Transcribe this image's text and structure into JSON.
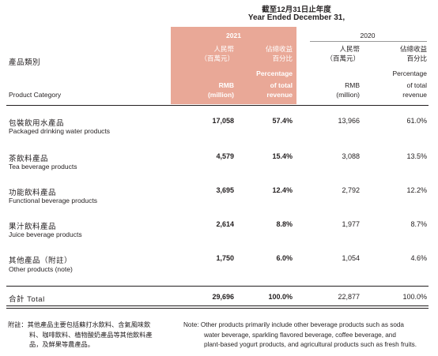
{
  "header": {
    "period_cn": "截至12月31日止年度",
    "period_en": "Year Ended December 31,",
    "category_cn": "產品類別",
    "category_en": "Product Category",
    "year_2021": "2021",
    "year_2020": "2020",
    "col_rmb_cn_1": "人民幣",
    "col_rmb_cn_2": "（百萬元）",
    "col_rmb_en_1": "RMB",
    "col_rmb_en_2": "(million)",
    "col_pct_cn_1": "佔總收益",
    "col_pct_cn_2": "百分比",
    "col_pct_en_1": "Percentage",
    "col_pct_en_2": "of total",
    "col_pct_en_3": "revenue"
  },
  "rows": [
    {
      "cn": "包裝飲用水產品",
      "en": "Packaged drinking water products",
      "rmb_2021": "17,058",
      "pct_2021": "57.4%",
      "rmb_2020": "13,966",
      "pct_2020": "61.0%"
    },
    {
      "cn": "茶飲料產品",
      "en": "Tea beverage products",
      "rmb_2021": "4,579",
      "pct_2021": "15.4%",
      "rmb_2020": "3,088",
      "pct_2020": "13.5%"
    },
    {
      "cn": "功能飲料產品",
      "en": "Functional beverage products",
      "rmb_2021": "3,695",
      "pct_2021": "12.4%",
      "rmb_2020": "2,792",
      "pct_2020": "12.2%"
    },
    {
      "cn": "果汁飲料產品",
      "en": "Juice beverage products",
      "rmb_2021": "2,614",
      "pct_2021": "8.8%",
      "rmb_2020": "1,977",
      "pct_2020": "8.7%"
    },
    {
      "cn": "其他產品（附註）",
      "en": "Other products (note)",
      "rmb_2021": "1,750",
      "pct_2021": "6.0%",
      "rmb_2020": "1,054",
      "pct_2020": "4.6%"
    }
  ],
  "total": {
    "label": "合計 Total",
    "rmb_2021": "29,696",
    "pct_2021": "100.0%",
    "rmb_2020": "22,877",
    "pct_2020": "100.0%"
  },
  "notes": {
    "cn_line1": "附註：其他產品主要包括蘇打水飲料、含氣風味飲",
    "cn_line2": "料、咖啡飲料、植物酸奶產品等其他飲料產",
    "cn_line3": "品，及鮮果等農產品。",
    "en_line1": "Note: Other products primarily include other beverage products such as soda",
    "en_line2": "water beverage, sparkling flavored beverage, coffee beverage, and",
    "en_line3": "plant-based yogurt products, and agricultural products such as fresh fruits."
  },
  "colors": {
    "highlight": "#e9a897",
    "text": "#231f20"
  }
}
